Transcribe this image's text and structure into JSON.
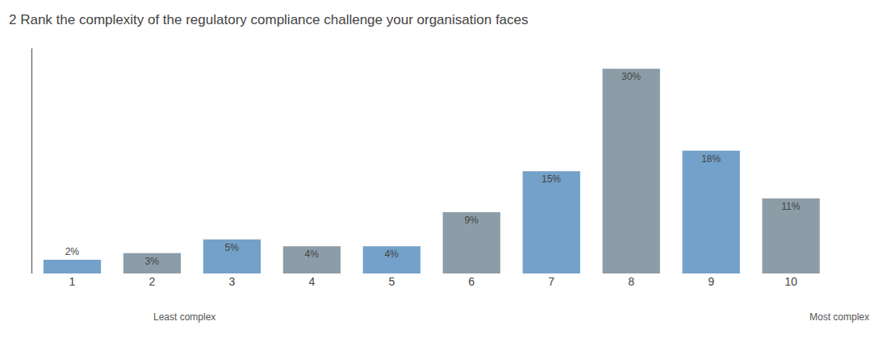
{
  "chart_data": {
    "type": "bar",
    "title": "2 Rank the complexity of the regulatory compliance challenge your organisation faces",
    "categories": [
      "1",
      "2",
      "3",
      "4",
      "5",
      "6",
      "7",
      "8",
      "9",
      "10"
    ],
    "values": [
      2,
      3,
      5,
      4,
      4,
      9,
      15,
      30,
      18,
      11
    ],
    "value_labels": [
      "2%",
      "3%",
      "5%",
      "4%",
      "4%",
      "9%",
      "15%",
      "30%",
      "18%",
      "11%"
    ],
    "colors": [
      "#73a1c9",
      "#8c9da8",
      "#73a1c9",
      "#8c9da8",
      "#73a1c9",
      "#8c9da8",
      "#73a1c9",
      "#8c9da8",
      "#73a1c9",
      "#8c9da8"
    ],
    "annotations": [
      "Least complex",
      "Most complex"
    ],
    "ylim": [
      0,
      33
    ],
    "data_labels": true,
    "tick_labels": "x",
    "grid": false
  }
}
